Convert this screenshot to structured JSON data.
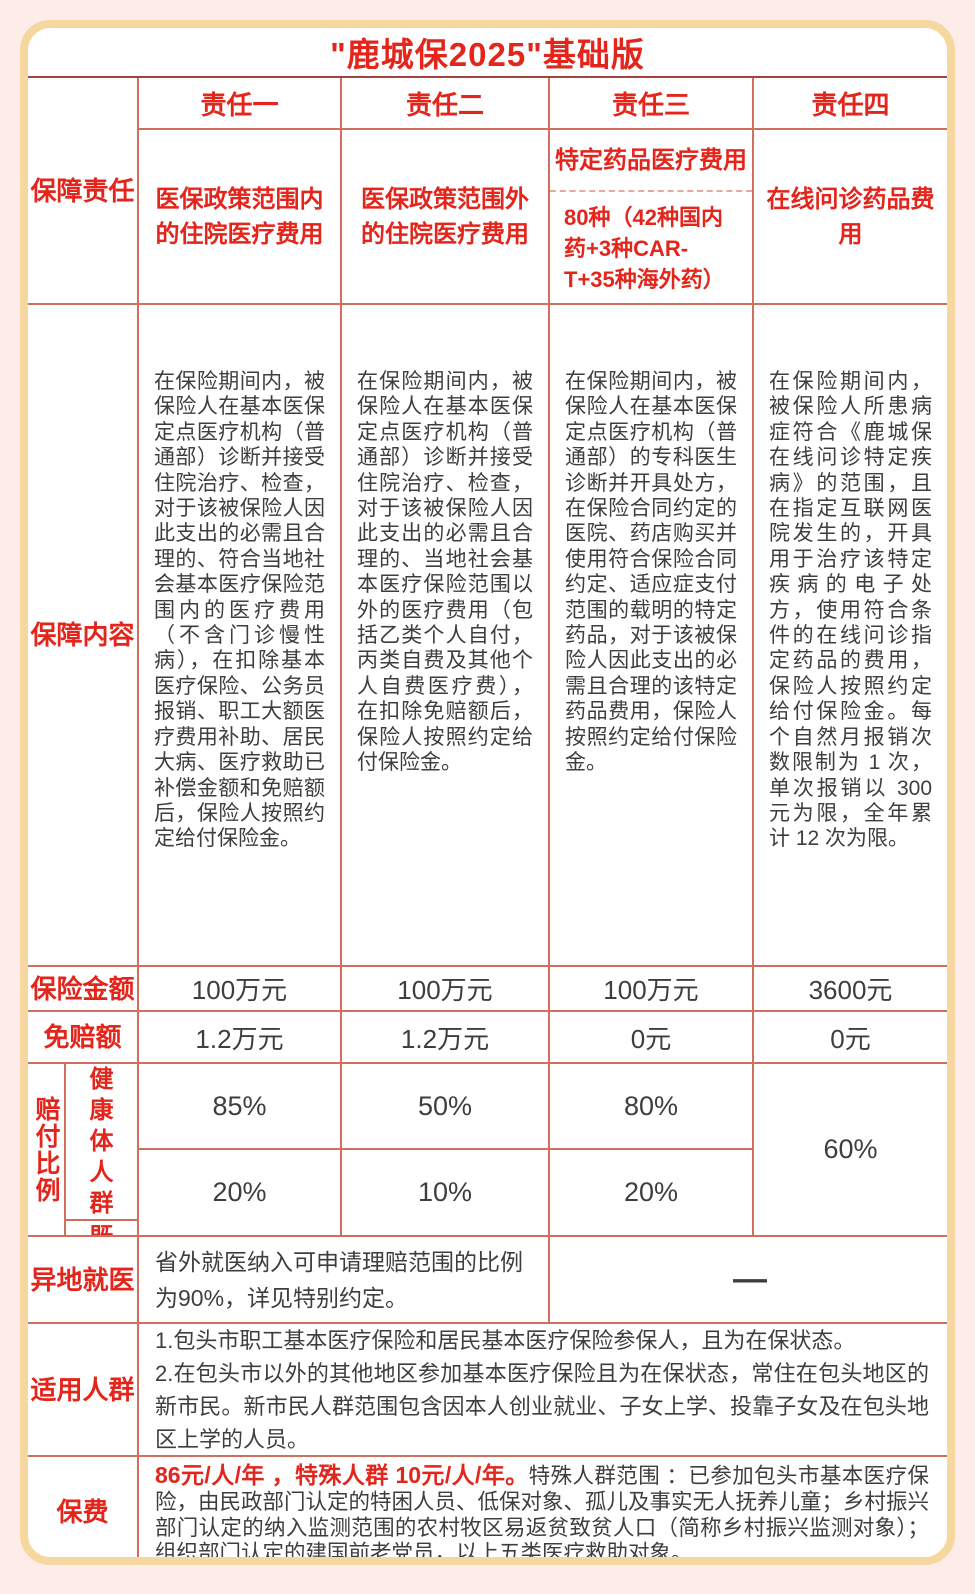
{
  "title": "\"鹿城保2025\"基础版",
  "colors": {
    "accent_red": "#e3251b",
    "grid_line": "#cd705f",
    "title_underline": "#a04540",
    "card_border": "#f6d7a0",
    "page_background": "#fdece7",
    "body_text": "#3e3e3e"
  },
  "header": {
    "row_label": "保障责任",
    "columns": [
      "责任一",
      "责任二",
      "责任三",
      "责任四"
    ]
  },
  "subheader": {
    "col1": "医保政策范围内的住院医疗费用",
    "col2": "医保政策范围外的住院医疗费用",
    "col3_title": "特定药品医疗费用",
    "col3_note": "80种（42种国内药+3种CAR-T+35种海外药）",
    "col4": "在线问诊药品费用"
  },
  "content": {
    "row_label": "保障内容",
    "cols": [
      "在保险期间内，被保险人在基本医保定点医疗机构（普通部）诊断并接受住院治疗、检查，对于该被保险人因此支出的必需且合理的、符合当地社会基本医疗保险范围内的医疗费用（不含门诊慢性病），在扣除基本医疗保险、公务员报销、职工大额医疗费用补助、居民大病、医疗救助已补偿金额和免赔额后，保险人按照约定给付保险金。",
      "在保险期间内，被保险人在基本医保定点医疗机构（普通部）诊断并接受住院治疗、检查，对于该被保险人因此支出的必需且合理的、当地社会基本医疗保险范围以外的医疗费用（包括乙类个人自付，丙类自费及其他个人自费医疗费），在扣除免赔额后，保险人按照约定给付保险金。",
      "在保险期间内，被保险人在基本医保定点医疗机构（普通部）的专科医生诊断并开具处方，在保险合同约定的医院、药店购买并使用符合保险合同约定、适应症支付范围的载明的特定药品，对于该被保险人因此支出的必需且合理的该特定药品费用，保险人按照约定给付保险金。",
      "在保险期间内，被保险人所患病症符合《鹿城保在线问诊特定疾病》的范围，且在指定互联网医院发生的，开具用于治疗该特定疾病的电子处方，使用符合条件的在线问诊指定药品的费用，保险人按照约定给付保险金。每个自然月报销次数限制为 1 次，单次报销以 300 元为限，全年累计 12 次为限。"
    ]
  },
  "sum_insured": {
    "row_label": "保险金额",
    "values": [
      "100万元",
      "100万元",
      "100万元",
      "3600元"
    ]
  },
  "deductible": {
    "row_label": "免赔额",
    "values": [
      "1.2万元",
      "1.2万元",
      "0元",
      "0元"
    ]
  },
  "payout": {
    "row_label": "赔付比例",
    "rows": [
      {
        "label": "健康体人群",
        "values": [
          "85%",
          "50%",
          "80%"
        ]
      },
      {
        "label": "既往症人群",
        "values": [
          "20%",
          "10%",
          "20%"
        ]
      }
    ],
    "merged_value": "60%"
  },
  "remote": {
    "row_label": "异地就医",
    "text": "省外就医纳入可申请理赔范围的比例为90%，详见特别约定。",
    "dash": "—"
  },
  "eligible": {
    "row_label": "适用人群",
    "items": [
      "1.包头市职工基本医疗保险和居民基本医疗保险参保人，且为在保状态。",
      "2.在包头市以外的其他地区参加基本医疗保险且为在保状态，常住在包头地区的新市民。新市民人群范围包含因本人创业就业、子女上学、投靠子女及在包头地区上学的人员。"
    ]
  },
  "premium": {
    "row_label": "保费",
    "highlight": "86元/人/年 ，特殊人群 10元/人/年。",
    "note": "特殊人群范围 ：已参加包头市基本医疗保险，由民政部门认定的特困人员、低保对象、孤儿及事实无人抚养儿童；乡村振兴部门认定的纳入监测范围的农村牧区易返贫致贫人口（简称乡村振兴监测对象）；组织部门认定的建国前老党员，以上五类医疗救助对象。"
  }
}
